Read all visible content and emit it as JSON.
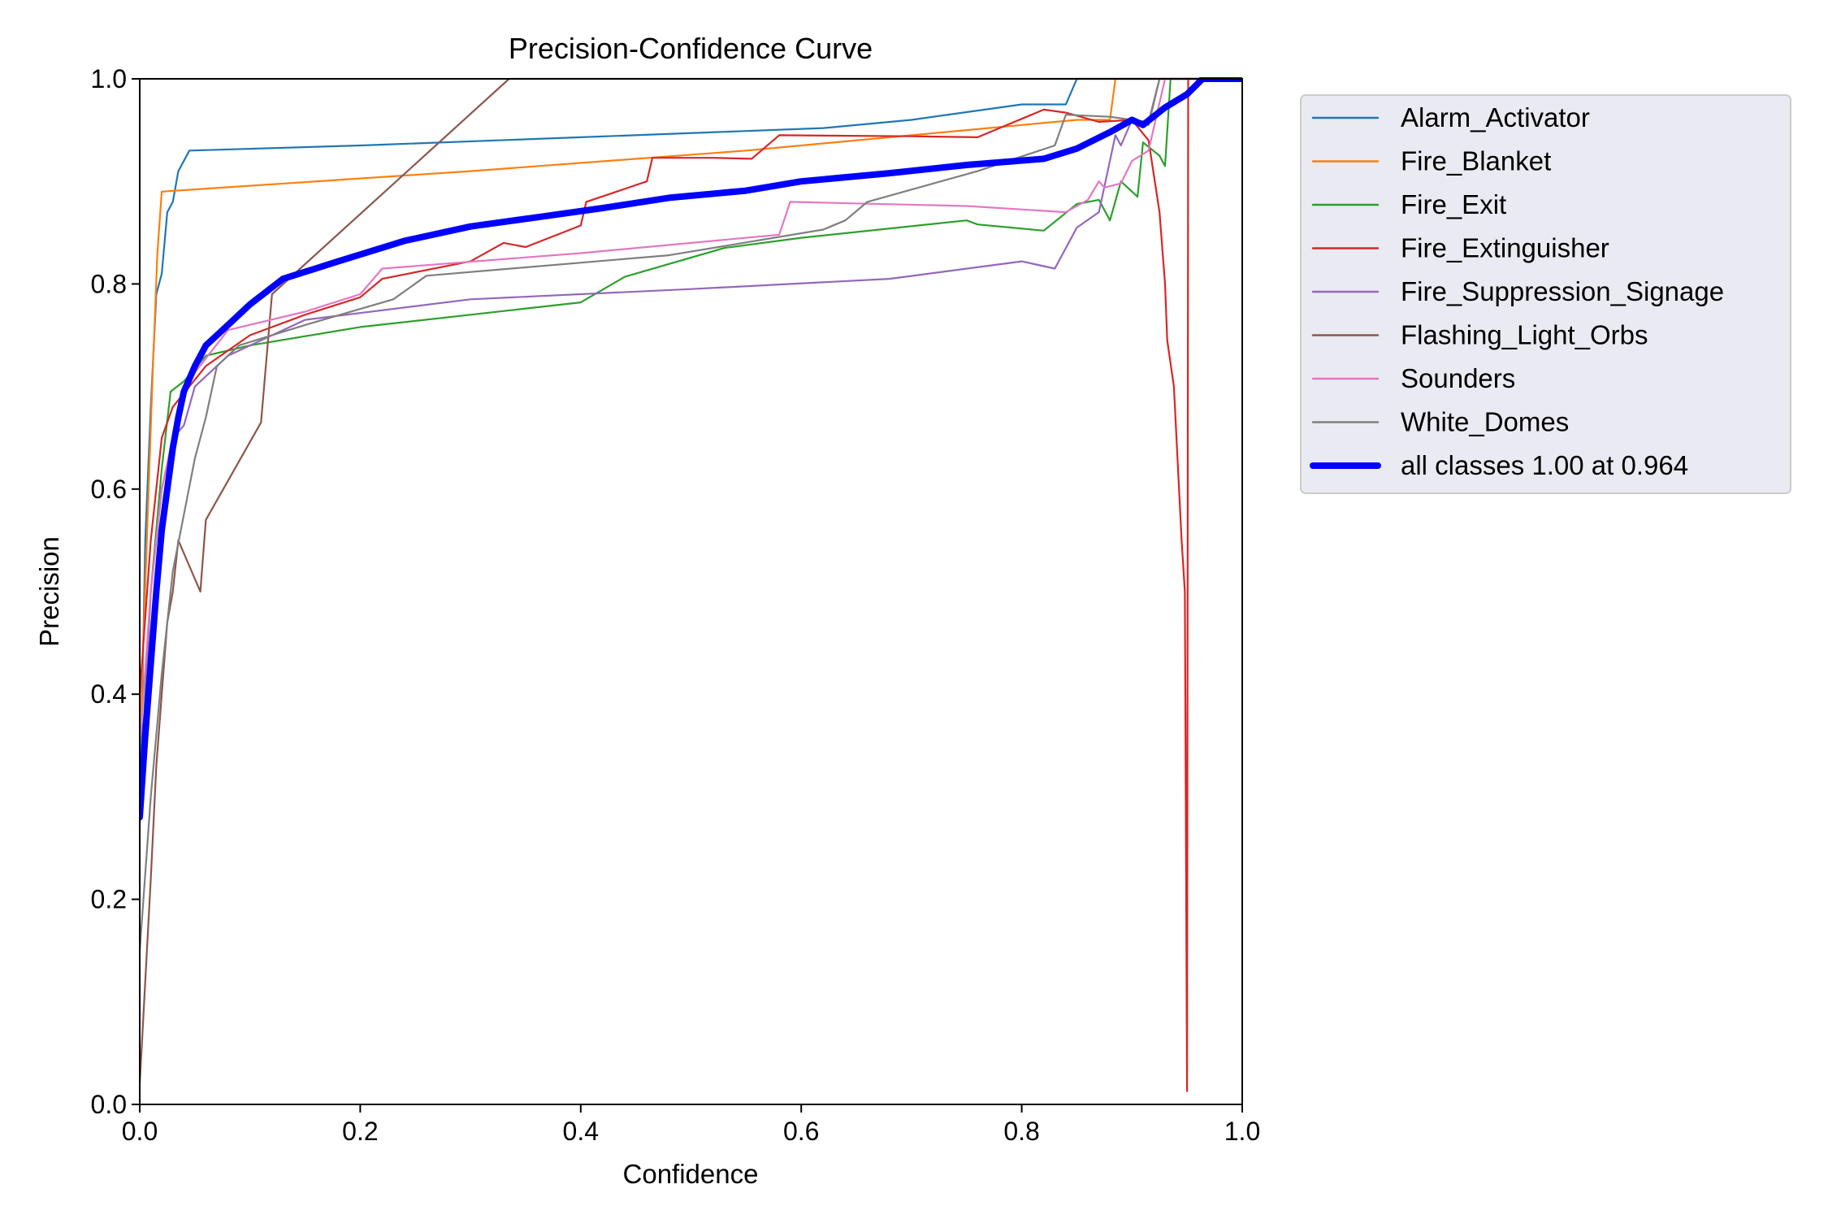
{
  "chart_data": {
    "type": "line",
    "title": "Precision-Confidence Curve",
    "xlabel": "Confidence",
    "ylabel": "Precision",
    "xlim": [
      0,
      1
    ],
    "ylim": [
      0,
      1
    ],
    "xticks": [
      "0.0",
      "0.2",
      "0.4",
      "0.6",
      "0.8",
      "1.0"
    ],
    "yticks": [
      "0.0",
      "0.2",
      "0.4",
      "0.6",
      "0.8",
      "1.0"
    ],
    "grid": false,
    "legend": "outside-right",
    "series": [
      {
        "name": "Alarm_Activator",
        "color": "#1f77b4",
        "width": "thin",
        "points": [
          [
            0.0,
            0.27
          ],
          [
            0.005,
            0.55
          ],
          [
            0.01,
            0.68
          ],
          [
            0.015,
            0.79
          ],
          [
            0.02,
            0.81
          ],
          [
            0.025,
            0.87
          ],
          [
            0.03,
            0.88
          ],
          [
            0.035,
            0.91
          ],
          [
            0.045,
            0.93
          ],
          [
            0.2,
            0.935
          ],
          [
            0.4,
            0.943
          ],
          [
            0.62,
            0.952
          ],
          [
            0.7,
            0.96
          ],
          [
            0.8,
            0.975
          ],
          [
            0.84,
            0.975
          ],
          [
            0.85,
            1.0
          ],
          [
            1.0,
            1.0
          ]
        ]
      },
      {
        "name": "Fire_Blanket",
        "color": "#ff7f0e",
        "width": "thin",
        "points": [
          [
            0.0,
            0.35
          ],
          [
            0.008,
            0.6
          ],
          [
            0.012,
            0.72
          ],
          [
            0.016,
            0.83
          ],
          [
            0.02,
            0.89
          ],
          [
            0.3,
            0.91
          ],
          [
            0.55,
            0.93
          ],
          [
            0.75,
            0.95
          ],
          [
            0.85,
            0.96
          ],
          [
            0.88,
            0.96
          ],
          [
            0.885,
            1.0
          ],
          [
            1.0,
            1.0
          ]
        ]
      },
      {
        "name": "Fire_Exit",
        "color": "#2ca02c",
        "width": "thin",
        "points": [
          [
            0.0,
            0.3
          ],
          [
            0.01,
            0.5
          ],
          [
            0.02,
            0.62
          ],
          [
            0.028,
            0.695
          ],
          [
            0.04,
            0.705
          ],
          [
            0.06,
            0.73
          ],
          [
            0.1,
            0.74
          ],
          [
            0.2,
            0.758
          ],
          [
            0.3,
            0.77
          ],
          [
            0.4,
            0.782
          ],
          [
            0.44,
            0.807
          ],
          [
            0.53,
            0.835
          ],
          [
            0.6,
            0.845
          ],
          [
            0.75,
            0.862
          ],
          [
            0.76,
            0.858
          ],
          [
            0.82,
            0.852
          ],
          [
            0.85,
            0.878
          ],
          [
            0.87,
            0.882
          ],
          [
            0.88,
            0.862
          ],
          [
            0.89,
            0.9
          ],
          [
            0.905,
            0.885
          ],
          [
            0.91,
            0.938
          ],
          [
            0.925,
            0.925
          ],
          [
            0.93,
            0.915
          ],
          [
            0.935,
            1.0
          ],
          [
            1.0,
            1.0
          ]
        ]
      },
      {
        "name": "Fire_Extinguisher",
        "color": "#d62728",
        "width": "thin",
        "points": [
          [
            0.0,
            0.4
          ],
          [
            0.01,
            0.55
          ],
          [
            0.02,
            0.65
          ],
          [
            0.03,
            0.68
          ],
          [
            0.06,
            0.72
          ],
          [
            0.1,
            0.75
          ],
          [
            0.15,
            0.77
          ],
          [
            0.2,
            0.787
          ],
          [
            0.22,
            0.805
          ],
          [
            0.3,
            0.822
          ],
          [
            0.33,
            0.84
          ],
          [
            0.35,
            0.836
          ],
          [
            0.4,
            0.857
          ],
          [
            0.405,
            0.88
          ],
          [
            0.46,
            0.9
          ],
          [
            0.465,
            0.923
          ],
          [
            0.52,
            0.923
          ],
          [
            0.555,
            0.922
          ],
          [
            0.58,
            0.945
          ],
          [
            0.7,
            0.944
          ],
          [
            0.76,
            0.943
          ],
          [
            0.82,
            0.97
          ],
          [
            0.84,
            0.967
          ],
          [
            0.87,
            0.958
          ],
          [
            0.9,
            0.96
          ],
          [
            0.915,
            0.94
          ],
          [
            0.925,
            0.87
          ],
          [
            0.93,
            0.8
          ],
          [
            0.932,
            0.745
          ],
          [
            0.938,
            0.7
          ],
          [
            0.945,
            0.55
          ],
          [
            0.948,
            0.5
          ],
          [
            0.95,
            0.013
          ],
          [
            0.951,
            1.0
          ],
          [
            1.0,
            1.0
          ]
        ]
      },
      {
        "name": "Fire_Suppression_Signage",
        "color": "#9467bd",
        "width": "thin",
        "points": [
          [
            0.0,
            0.28
          ],
          [
            0.01,
            0.5
          ],
          [
            0.02,
            0.6
          ],
          [
            0.03,
            0.65
          ],
          [
            0.04,
            0.662
          ],
          [
            0.05,
            0.7
          ],
          [
            0.08,
            0.73
          ],
          [
            0.15,
            0.765
          ],
          [
            0.3,
            0.785
          ],
          [
            0.5,
            0.795
          ],
          [
            0.68,
            0.805
          ],
          [
            0.8,
            0.822
          ],
          [
            0.83,
            0.815
          ],
          [
            0.85,
            0.855
          ],
          [
            0.87,
            0.87
          ],
          [
            0.885,
            0.945
          ],
          [
            0.89,
            0.935
          ],
          [
            0.9,
            0.96
          ],
          [
            0.915,
            0.958
          ],
          [
            0.925,
            1.0
          ],
          [
            1.0,
            1.0
          ]
        ]
      },
      {
        "name": "Flashing_Light_Orbs",
        "color": "#8c564b",
        "width": "thin",
        "points": [
          [
            0.0,
            0.02
          ],
          [
            0.01,
            0.22
          ],
          [
            0.015,
            0.33
          ],
          [
            0.02,
            0.4
          ],
          [
            0.025,
            0.47
          ],
          [
            0.03,
            0.5
          ],
          [
            0.035,
            0.55
          ],
          [
            0.055,
            0.5
          ],
          [
            0.06,
            0.57
          ],
          [
            0.11,
            0.665
          ],
          [
            0.12,
            0.79
          ],
          [
            0.335,
            1.0
          ],
          [
            1.0,
            1.0
          ]
        ]
      },
      {
        "name": "Sounders",
        "color": "#e377c2",
        "width": "thin",
        "points": [
          [
            0.0,
            0.35
          ],
          [
            0.01,
            0.5
          ],
          [
            0.02,
            0.6
          ],
          [
            0.04,
            0.7
          ],
          [
            0.08,
            0.755
          ],
          [
            0.15,
            0.773
          ],
          [
            0.2,
            0.79
          ],
          [
            0.22,
            0.815
          ],
          [
            0.4,
            0.83
          ],
          [
            0.58,
            0.848
          ],
          [
            0.59,
            0.88
          ],
          [
            0.75,
            0.876
          ],
          [
            0.84,
            0.87
          ],
          [
            0.86,
            0.882
          ],
          [
            0.87,
            0.9
          ],
          [
            0.875,
            0.894
          ],
          [
            0.89,
            0.898
          ],
          [
            0.9,
            0.92
          ],
          [
            0.915,
            0.93
          ],
          [
            0.93,
            1.0
          ],
          [
            1.0,
            1.0
          ]
        ]
      },
      {
        "name": "White_Domes",
        "color": "#7f7f7f",
        "width": "thin",
        "points": [
          [
            0.0,
            0.15
          ],
          [
            0.01,
            0.3
          ],
          [
            0.02,
            0.42
          ],
          [
            0.03,
            0.52
          ],
          [
            0.04,
            0.575
          ],
          [
            0.05,
            0.63
          ],
          [
            0.06,
            0.67
          ],
          [
            0.07,
            0.72
          ],
          [
            0.09,
            0.74
          ],
          [
            0.15,
            0.76
          ],
          [
            0.23,
            0.785
          ],
          [
            0.26,
            0.808
          ],
          [
            0.48,
            0.828
          ],
          [
            0.62,
            0.853
          ],
          [
            0.64,
            0.862
          ],
          [
            0.66,
            0.88
          ],
          [
            0.76,
            0.91
          ],
          [
            0.83,
            0.935
          ],
          [
            0.84,
            0.965
          ],
          [
            0.88,
            0.963
          ],
          [
            0.9,
            0.96
          ],
          [
            0.915,
            0.955
          ],
          [
            0.925,
            1.0
          ],
          [
            1.0,
            1.0
          ]
        ]
      },
      {
        "name": "all classes 1.00 at 0.964",
        "color": "#0000ff",
        "width": "thick",
        "points": [
          [
            0.0,
            0.28
          ],
          [
            0.005,
            0.36
          ],
          [
            0.01,
            0.43
          ],
          [
            0.015,
            0.5
          ],
          [
            0.02,
            0.56
          ],
          [
            0.025,
            0.6
          ],
          [
            0.03,
            0.64
          ],
          [
            0.035,
            0.67
          ],
          [
            0.04,
            0.695
          ],
          [
            0.05,
            0.72
          ],
          [
            0.06,
            0.74
          ],
          [
            0.08,
            0.76
          ],
          [
            0.1,
            0.78
          ],
          [
            0.13,
            0.805
          ],
          [
            0.18,
            0.822
          ],
          [
            0.24,
            0.842
          ],
          [
            0.3,
            0.856
          ],
          [
            0.36,
            0.865
          ],
          [
            0.42,
            0.874
          ],
          [
            0.48,
            0.884
          ],
          [
            0.55,
            0.891
          ],
          [
            0.6,
            0.9
          ],
          [
            0.68,
            0.908
          ],
          [
            0.75,
            0.916
          ],
          [
            0.82,
            0.922
          ],
          [
            0.85,
            0.932
          ],
          [
            0.88,
            0.948
          ],
          [
            0.9,
            0.96
          ],
          [
            0.91,
            0.955
          ],
          [
            0.93,
            0.972
          ],
          [
            0.95,
            0.985
          ],
          [
            0.964,
            1.0
          ],
          [
            1.0,
            1.0
          ]
        ]
      }
    ]
  }
}
